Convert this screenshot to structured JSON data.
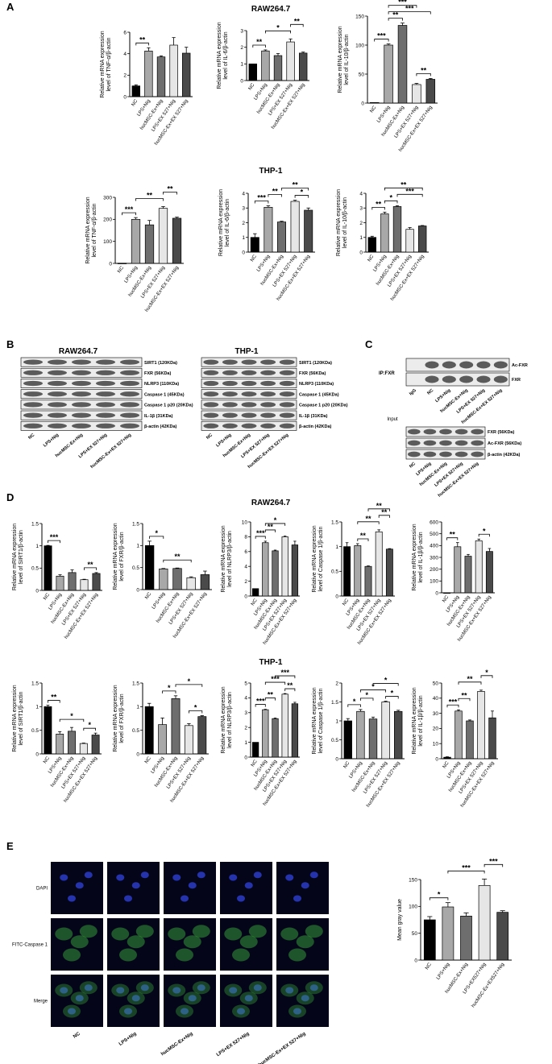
{
  "panel_letters": {
    "a": "A",
    "b": "B",
    "c": "C",
    "d": "D",
    "e": "E"
  },
  "titles": {
    "raw_a": "RAW264.7",
    "thp_a": "THP-1",
    "raw_b": "RAW264.7",
    "thp_b": "THP-1",
    "raw_d": "RAW264.7",
    "thp_d": "THP-1"
  },
  "colors": {
    "NC": "#000000",
    "LPS+Nig": "#a8a8a8",
    "hucMSC-Ex+Nig": "#6e6e6e",
    "LPS+EX 527+Nig": "#e6e6e6",
    "hucMSC-Ex+EX 527+Nig": "#4a4a4a"
  },
  "chart_data": [
    {
      "id": "a1",
      "type": "bar",
      "ylabel": [
        "Relative mRNA expression",
        "level of TNF-α/β-actin"
      ],
      "ylim": [
        0,
        6
      ],
      "yticks": [
        0,
        2,
        4,
        6
      ],
      "categories": [
        "NC",
        "LPS+Nig",
        "hucMSC-Ex+Nig",
        "LPS+EX 527+Nig",
        "hucMSC-Ex+EX 527+Nig"
      ],
      "values": [
        1.0,
        4.25,
        3.7,
        4.8,
        4.05
      ],
      "errors": [
        0.1,
        0.3,
        0.1,
        0.7,
        0.55
      ],
      "brackets": [
        {
          "from": 0,
          "to": 1,
          "label": "**"
        }
      ]
    },
    {
      "id": "a2",
      "type": "bar",
      "ylabel": [
        "Relative mRNA expression",
        "level of IL-6/β-actin"
      ],
      "ylim": [
        0,
        3
      ],
      "yticks": [
        0,
        1,
        2,
        3
      ],
      "categories": [
        "NC",
        "LPS+Nig",
        "hucMSC-Ex+Nig",
        "LPS+EX 527+Nig",
        "hucMSC-Ex+EX 527+Nig"
      ],
      "values": [
        1.0,
        1.78,
        1.5,
        2.32,
        1.65
      ],
      "errors": [
        0.02,
        0.06,
        0.12,
        0.18,
        0.06
      ],
      "brackets": [
        {
          "from": 0,
          "to": 1,
          "label": "**"
        },
        {
          "from": 1,
          "to": 3,
          "label": "*"
        },
        {
          "from": 3,
          "to": 4,
          "label": "**"
        }
      ]
    },
    {
      "id": "a3",
      "type": "bar",
      "ylabel": [
        "Relative mRNA expression",
        "level of IL-10/β-actin"
      ],
      "ylim": [
        0,
        150
      ],
      "yticks": [
        0,
        50,
        100,
        150
      ],
      "categories": [
        "NC",
        "LPS+Nig",
        "hucMSC-Ex+Nig",
        "LPS+EX 527+Nig",
        "hucMSC-Ex+EX 527+Nig"
      ],
      "values": [
        1,
        100,
        134,
        32,
        41
      ],
      "errors": [
        0.5,
        2,
        4,
        2,
        1.5
      ],
      "brackets": [
        {
          "from": 0,
          "to": 1,
          "label": "***"
        },
        {
          "from": 1,
          "to": 2,
          "label": "**"
        },
        {
          "from": 1,
          "to": 4,
          "label": "***"
        },
        {
          "from": 1,
          "to": 3,
          "label": "***"
        },
        {
          "from": 3,
          "to": 4,
          "label": "**"
        }
      ]
    },
    {
      "id": "a4",
      "type": "bar",
      "ylabel": [
        "Relative mRNA expression",
        "level of TNF-α/β-actin"
      ],
      "ylim": [
        0,
        300
      ],
      "yticks": [
        0,
        100,
        200,
        300
      ],
      "categories": [
        "NC",
        "LPS+Nig",
        "hucMSC-Ex+Nig",
        "LPS+EX 527+Nig",
        "hucMSC-Ex+EX 527+Nig"
      ],
      "values": [
        1,
        200,
        175,
        250,
        205
      ],
      "errors": [
        0.5,
        8,
        20,
        8,
        5
      ],
      "brackets": [
        {
          "from": 0,
          "to": 1,
          "label": "***"
        },
        {
          "from": 1,
          "to": 3,
          "label": "**"
        },
        {
          "from": 3,
          "to": 4,
          "label": "**"
        }
      ]
    },
    {
      "id": "a5",
      "type": "bar",
      "ylabel": [
        "Relative mRNA expression",
        "level of IL-6/β-actin"
      ],
      "ylim": [
        0,
        4
      ],
      "yticks": [
        0,
        1,
        2,
        3,
        4
      ],
      "categories": [
        "NC",
        "LPS+Nig",
        "hucMSC-Ex+Nig",
        "LPS+EX 527+Nig",
        "hucMSC-Ex+EX 527+Nig"
      ],
      "values": [
        1.0,
        3.05,
        2.05,
        3.45,
        2.85
      ],
      "errors": [
        0.25,
        0.1,
        0.05,
        0.08,
        0.15
      ],
      "brackets": [
        {
          "from": 0,
          "to": 1,
          "label": "***"
        },
        {
          "from": 1,
          "to": 2,
          "label": "**"
        },
        {
          "from": 3,
          "to": 4,
          "label": "*"
        },
        {
          "from": 2,
          "to": 4,
          "label": "**"
        }
      ]
    },
    {
      "id": "a6",
      "type": "bar",
      "ylabel": [
        "Relative mRNA expression",
        "level of IL-10/β-actin"
      ],
      "ylim": [
        0,
        4
      ],
      "yticks": [
        0,
        1,
        2,
        3,
        4
      ],
      "categories": [
        "NC",
        "LPS+Nig",
        "hucMSC-Ex+Nig",
        "LPS+EX 527+Nig",
        "hucMSC-Ex+EX 527+Nig"
      ],
      "values": [
        1.0,
        2.6,
        3.1,
        1.55,
        1.78
      ],
      "errors": [
        0.08,
        0.12,
        0.06,
        0.12,
        0.03
      ],
      "brackets": [
        {
          "from": 0,
          "to": 1,
          "label": "**"
        },
        {
          "from": 1,
          "to": 2,
          "label": "*"
        },
        {
          "from": 2,
          "to": 4,
          "label": "***"
        },
        {
          "from": 1,
          "to": 4,
          "label": "**"
        }
      ]
    },
    {
      "id": "d1",
      "type": "bar",
      "ylabel": [
        "Relative mRNA expression",
        "level of SIRT1/β-actin"
      ],
      "ylim": [
        0,
        1.5
      ],
      "yticks": [
        0,
        0.5,
        1.0,
        1.5
      ],
      "categories": [
        "NC",
        "LPS+Nig",
        "hucMSC-Ex+Nig",
        "LPS+EX 527+Nig",
        "hucMSC-Ex+EX 527+Nig"
      ],
      "values": [
        1.0,
        0.32,
        0.4,
        0.24,
        0.38
      ],
      "errors": [
        0.01,
        0.03,
        0.06,
        0.01,
        0.02
      ],
      "brackets": [
        {
          "from": 0,
          "to": 1,
          "label": "***"
        },
        {
          "from": 3,
          "to": 4,
          "label": "**"
        }
      ]
    },
    {
      "id": "d2",
      "type": "bar",
      "ylabel": [
        "Relative mRNA expression",
        "level of FXR/β-actin"
      ],
      "ylim": [
        0,
        1.5
      ],
      "yticks": [
        0,
        0.5,
        1.0,
        1.5
      ],
      "categories": [
        "NC",
        "LPS+Nig",
        "hucMSC-Ex+Nig",
        "LPS+EX 527+Nig",
        "hucMSC-Ex+EX 527+Nig"
      ],
      "values": [
        1.0,
        0.47,
        0.48,
        0.27,
        0.34
      ],
      "errors": [
        0.1,
        0.01,
        0.01,
        0.02,
        0.08
      ],
      "brackets": [
        {
          "from": 0,
          "to": 1,
          "label": "*"
        },
        {
          "from": 1,
          "to": 3,
          "label": "**"
        }
      ]
    },
    {
      "id": "d3",
      "type": "bar",
      "ylabel": [
        "Relative mRNA expression",
        "level of NLRP3/β-actin"
      ],
      "ylim": [
        0,
        10
      ],
      "yticks": [
        0,
        2,
        4,
        6,
        8,
        10
      ],
      "categories": [
        "NC",
        "LPS+Nig",
        "hucMSC-Ex+Nig",
        "LPS+EX 527+Nig",
        "hucMSC-Ex+EX 527+Nig"
      ],
      "values": [
        1.0,
        7.2,
        6.1,
        8.0,
        6.9
      ],
      "errors": [
        0.05,
        0.2,
        0.1,
        0.1,
        0.5
      ],
      "brackets": [
        {
          "from": 0,
          "to": 1,
          "label": "***"
        },
        {
          "from": 1,
          "to": 2,
          "label": "**"
        },
        {
          "from": 1,
          "to": 3,
          "label": "*"
        }
      ]
    },
    {
      "id": "d4",
      "type": "bar",
      "ylabel": [
        "Relative mRNA expression",
        "level of Caspase 1/β-actin"
      ],
      "ylim": [
        0,
        1.5
      ],
      "yticks": [
        0,
        0.5,
        1.0,
        1.5
      ],
      "categories": [
        "NC",
        "LPS+Nig",
        "hucMSC-Ex+Nig",
        "LPS+EX 527+Nig",
        "hucMSC-Ex+EX 527+Nig"
      ],
      "values": [
        1.0,
        1.02,
        0.6,
        1.3,
        0.95
      ],
      "errors": [
        0.08,
        0.04,
        0.01,
        0.04,
        0.01
      ],
      "brackets": [
        {
          "from": 1,
          "to": 2,
          "label": "**"
        },
        {
          "from": 1,
          "to": 3,
          "label": "**"
        },
        {
          "from": 3,
          "to": 4,
          "label": "**"
        },
        {
          "from": 2,
          "to": 4,
          "label": "**"
        }
      ]
    },
    {
      "id": "d5",
      "type": "bar",
      "ylabel": [
        "Relative mRNA expression",
        "level of IL-1β/β-actin"
      ],
      "ylim": [
        0,
        600
      ],
      "yticks": [
        0,
        100,
        200,
        300,
        400,
        500,
        600
      ],
      "categories": [
        "NC",
        "LPS+Nig",
        "hucMSC-Ex+Nig",
        "LPS+EX 527+Nig",
        "hucMSC-Ex+EX 527+Nig"
      ],
      "values": [
        1,
        390,
        310,
        440,
        350
      ],
      "errors": [
        0.5,
        35,
        15,
        15,
        25
      ],
      "brackets": [
        {
          "from": 0,
          "to": 1,
          "label": "**"
        },
        {
          "from": 3,
          "to": 4,
          "label": "*"
        }
      ]
    },
    {
      "id": "d6",
      "type": "bar",
      "ylabel": [
        "Relative mRNA expression",
        "level of SIRT1/β-actin"
      ],
      "ylim": [
        0,
        1.5
      ],
      "yticks": [
        0,
        0.5,
        1.0,
        1.5
      ],
      "categories": [
        "NC",
        "LPS+Nig",
        "hucMSC-Ex+Nig",
        "LPS+EX 527+Nig",
        "hucMSC-Ex+EX 527+Nig"
      ],
      "values": [
        1.0,
        0.42,
        0.48,
        0.22,
        0.4
      ],
      "errors": [
        0.03,
        0.05,
        0.08,
        0.01,
        0.04
      ],
      "brackets": [
        {
          "from": 0,
          "to": 1,
          "label": "**"
        },
        {
          "from": 1,
          "to": 3,
          "label": "*"
        },
        {
          "from": 3,
          "to": 4,
          "label": "*"
        }
      ]
    },
    {
      "id": "d7",
      "type": "bar",
      "ylabel": [
        "Relative mRNA expression",
        "level of FXR/β-actin"
      ],
      "ylim": [
        0,
        1.5
      ],
      "yticks": [
        0,
        0.5,
        1.0,
        1.5
      ],
      "categories": [
        "NC",
        "LPS+Nig",
        "hucMSC-Ex+Nig",
        "LPS+EX 527+Nig",
        "hucMSC-Ex+EX 527+Nig"
      ],
      "values": [
        1.0,
        0.62,
        1.17,
        0.6,
        0.79
      ],
      "errors": [
        0.07,
        0.14,
        0.06,
        0.04,
        0.02
      ],
      "brackets": [
        {
          "from": 1,
          "to": 2,
          "label": "*"
        },
        {
          "from": 2,
          "to": 4,
          "label": "*"
        },
        {
          "from": 3,
          "to": 4,
          "label": "*"
        }
      ]
    },
    {
      "id": "d8",
      "type": "bar",
      "ylabel": [
        "Relative mRNA expression",
        "level of NLRP3/β-actin"
      ],
      "ylim": [
        0,
        5
      ],
      "yticks": [
        0,
        1,
        2,
        3,
        4,
        5
      ],
      "categories": [
        "NC",
        "LPS+Nig",
        "hucMSC-Ex+Nig",
        "LPS+EX 527+Nig",
        "hucMSC-Ex+EX 527+Nig"
      ],
      "values": [
        1.0,
        3.2,
        2.6,
        4.25,
        3.6
      ],
      "errors": [
        0.02,
        0.03,
        0.04,
        0.04,
        0.1
      ],
      "brackets": [
        {
          "from": 0,
          "to": 1,
          "label": "***"
        },
        {
          "from": 1,
          "to": 2,
          "label": "**"
        },
        {
          "from": 3,
          "to": 4,
          "label": "**"
        },
        {
          "from": 1,
          "to": 3,
          "label": "***"
        },
        {
          "from": 2,
          "to": 4,
          "label": "***"
        }
      ]
    },
    {
      "id": "d9",
      "type": "bar",
      "ylabel": [
        "Relative mRNA expression",
        "level of Caspase 1/β-actin"
      ],
      "ylim": [
        0,
        2.0
      ],
      "yticks": [
        0,
        0.5,
        1.0,
        1.5,
        2.0
      ],
      "categories": [
        "NC",
        "LPS+Nig",
        "hucMSC-Ex+Nig",
        "LPS+EX 527+Nig",
        "hucMSC-Ex+EX 527+Nig"
      ],
      "values": [
        1.0,
        1.25,
        1.05,
        1.5,
        1.25
      ],
      "errors": [
        0.06,
        0.05,
        0.05,
        0.02,
        0.03
      ],
      "brackets": [
        {
          "from": 0,
          "to": 1,
          "label": "*"
        },
        {
          "from": 1,
          "to": 2,
          "label": "*"
        },
        {
          "from": 3,
          "to": 4,
          "label": "*"
        },
        {
          "from": 1,
          "to": 3,
          "label": "*"
        },
        {
          "from": 2,
          "to": 4,
          "label": "*"
        }
      ]
    },
    {
      "id": "d10",
      "type": "bar",
      "ylabel": [
        "Relative mRNA expression",
        "level of IL-1β/β-actin"
      ],
      "ylim": [
        0,
        50
      ],
      "yticks": [
        0,
        10,
        20,
        30,
        40,
        50
      ],
      "categories": [
        "NC",
        "LPS+Nig",
        "hucMSC-Ex+Nig",
        "LPS+EX 527+Nig",
        "hucMSC-Ex+EX 527+Nig"
      ],
      "values": [
        1,
        31.5,
        25,
        44.5,
        27
      ],
      "errors": [
        0.3,
        0.8,
        0.6,
        0.8,
        4.5
      ],
      "brackets": [
        {
          "from": 0,
          "to": 1,
          "label": "***"
        },
        {
          "from": 1,
          "to": 2,
          "label": "**"
        },
        {
          "from": 1,
          "to": 3,
          "label": "**"
        },
        {
          "from": 3,
          "to": 4,
          "label": "*"
        }
      ]
    },
    {
      "id": "e",
      "type": "bar",
      "ylabel": [
        "Mean gray value"
      ],
      "ylim": [
        0,
        150
      ],
      "yticks": [
        0,
        50,
        100,
        150
      ],
      "categories": [
        "NC",
        "LPS+Nig",
        "hucMSC-Ex+Nig",
        "LPS+EX527+Nig",
        "hucMSC-Ex+EX527+Nig"
      ],
      "values": [
        75,
        99,
        82,
        139,
        89
      ],
      "errors": [
        6,
        8,
        6,
        12,
        3
      ],
      "brackets": [
        {
          "from": 0,
          "to": 1,
          "label": "*"
        },
        {
          "from": 1,
          "to": 3,
          "label": "***"
        },
        {
          "from": 3,
          "to": 4,
          "label": "***"
        }
      ]
    }
  ],
  "blots": {
    "b_raw": {
      "title": "RAW264.7",
      "labels": [
        "SIRT1 (120KDa)",
        "FXR (56KDa)",
        "NLRP3 (110KDa)",
        "Caspase 1  (45KDa)",
        "Caspase 1 p20 (20KDa)",
        "IL-1β (31KDa)",
        "β-actin (42KDa)"
      ],
      "lanes": [
        "NC",
        "LPS+Nig",
        "hucMSC-Ex+Nig",
        "LPS+EX 527+Nig",
        "hucMSC-Ex+EX 527+Nig"
      ]
    },
    "b_thp": {
      "title": "THP-1",
      "labels": [
        "SIRT1 (120KDa)",
        "FXR (56KDa)",
        "NLRP3 (110KDa)",
        "Caspase 1  (45KDa)",
        "Caspase 1 p20 (20KDa)",
        "IL-1β (31KDa)",
        "β-actin (42KDa)"
      ],
      "lanes": [
        "NC",
        "LPS+Nig",
        "hucMSC-Ex+Nig",
        "LPS+EX 527+Nig",
        "hucMSC-Ex+EX 527+Nig"
      ]
    },
    "c_ip": {
      "side": "IP:FXR",
      "labels": [
        "Ac-FXR",
        "FXR"
      ],
      "lanes": [
        "IgG",
        "NC",
        "LPS+Nig",
        "hucMSC-Ex+Nig",
        "LPS+EX 527+Nig",
        "hucMSC-Ex+EX 527+Nig"
      ]
    },
    "c_input": {
      "title": "Input",
      "labels": [
        "FXR (56KDa)",
        "Ac-FXR (56KDa)",
        "β-actin (42KDa)"
      ],
      "lanes": [
        "NC",
        "LPS+Nig",
        "hucMSC-Ex+Nig",
        "LPS+EX 527+Nig",
        "hucMSC-Ex+EX 527+Nig"
      ]
    }
  },
  "micro": {
    "rows": [
      "DAPI",
      "FITC-Caspase 1",
      "Merge"
    ],
    "cols": [
      "NC",
      "LPS+Nig",
      "hucMSC-Ex+Nig",
      "LPS+EX 527+Nig",
      "hucMSC-Ex+EX 527+Nig"
    ]
  }
}
